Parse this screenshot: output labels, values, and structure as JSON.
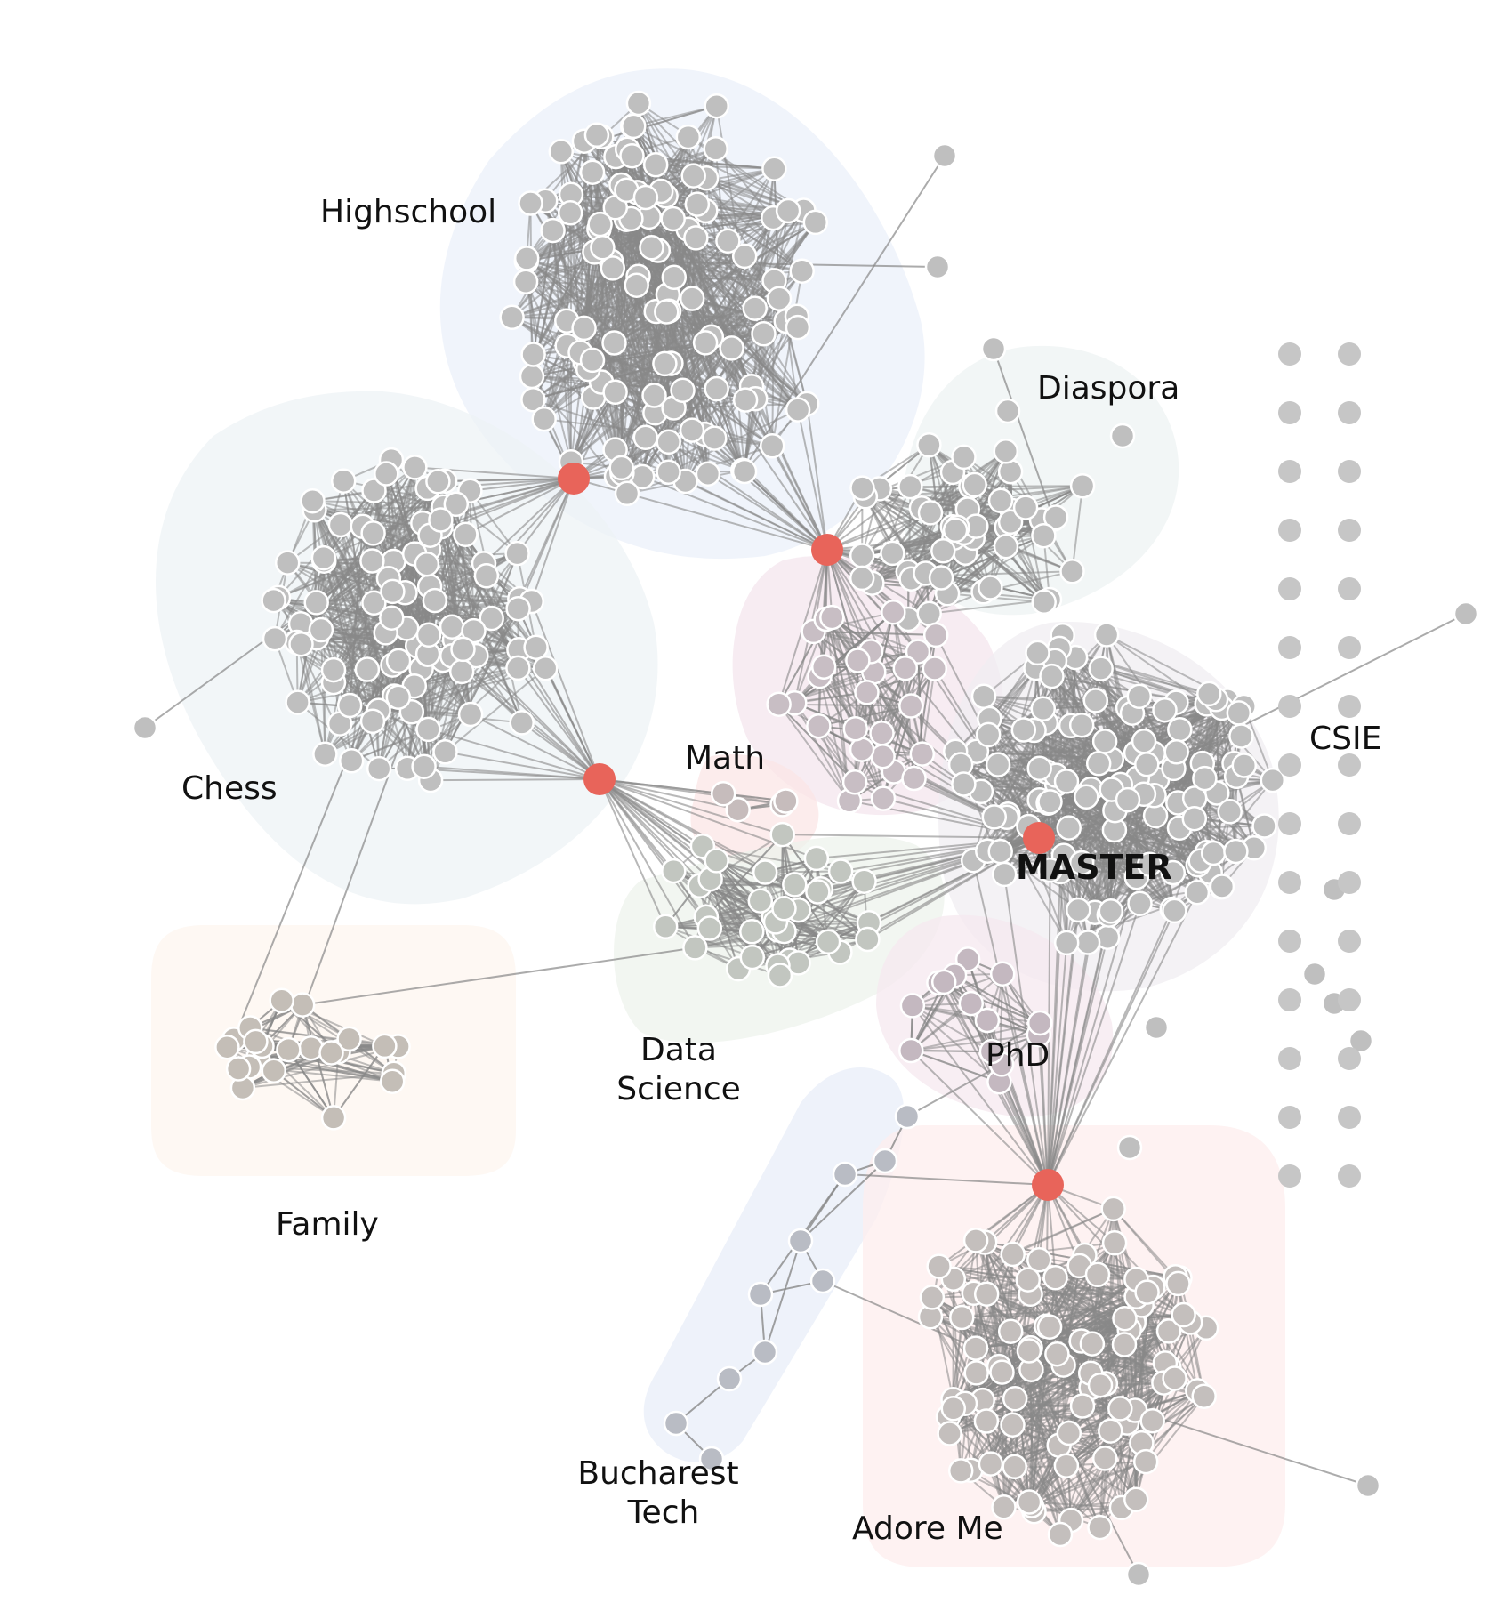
{
  "graph": {
    "groups": [
      {
        "id": "highschool",
        "label": "Highschool",
        "color": "#ebf0fa"
      },
      {
        "id": "chess",
        "label": "Chess",
        "color": "#eef3f6"
      },
      {
        "id": "diaspora",
        "label": "Diaspora",
        "color": "#eef3f3"
      },
      {
        "id": "math",
        "label": "Math",
        "color": "#fbe6e6"
      },
      {
        "id": "data-science",
        "label_lines": [
          "Data",
          "Science"
        ],
        "color": "#edf3ec"
      },
      {
        "id": "master",
        "label": "MASTER",
        "color": "#f0eef2"
      },
      {
        "id": "csie",
        "label": "CSIE",
        "color": "#ffffff"
      },
      {
        "id": "family",
        "label": "Family",
        "color": "#fdf5ef"
      },
      {
        "id": "phd",
        "label": "PhD",
        "color": "#f6e8ef"
      },
      {
        "id": "bucharest-tech",
        "label_lines": [
          "Bucharest",
          "Tech"
        ],
        "color": "#e8eef8"
      },
      {
        "id": "adore-me",
        "label": "Adore Me",
        "color": "#fdeeee"
      },
      {
        "id": "pink-region",
        "label": "",
        "color": "#f4e6ee"
      }
    ],
    "colors": {
      "node_fill": "#bfbfbf",
      "node_fill_family": "#c4beb7",
      "node_stroke": "#ffffff",
      "edge": "#888888",
      "hub": "#e8645a",
      "isolated": "#c6c6c6"
    }
  }
}
